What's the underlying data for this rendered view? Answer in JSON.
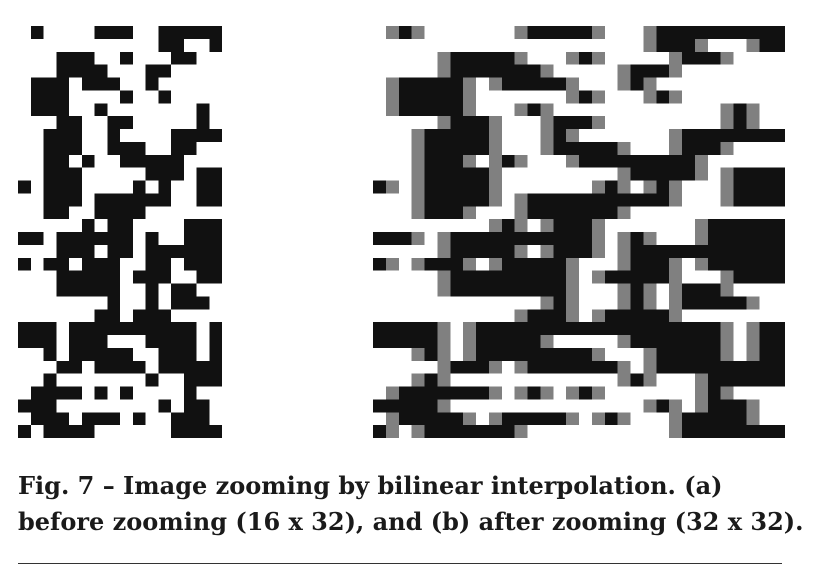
{
  "figure": {
    "caption": "Fig. 7 – Image zooming by bilinear interpolation. (a) before zooming (16 x 32), and (b) after zooming (32 x 32).",
    "colors": {
      "black": "#111111",
      "gray": "#808080",
      "white": "#ffffff"
    }
  }
}
